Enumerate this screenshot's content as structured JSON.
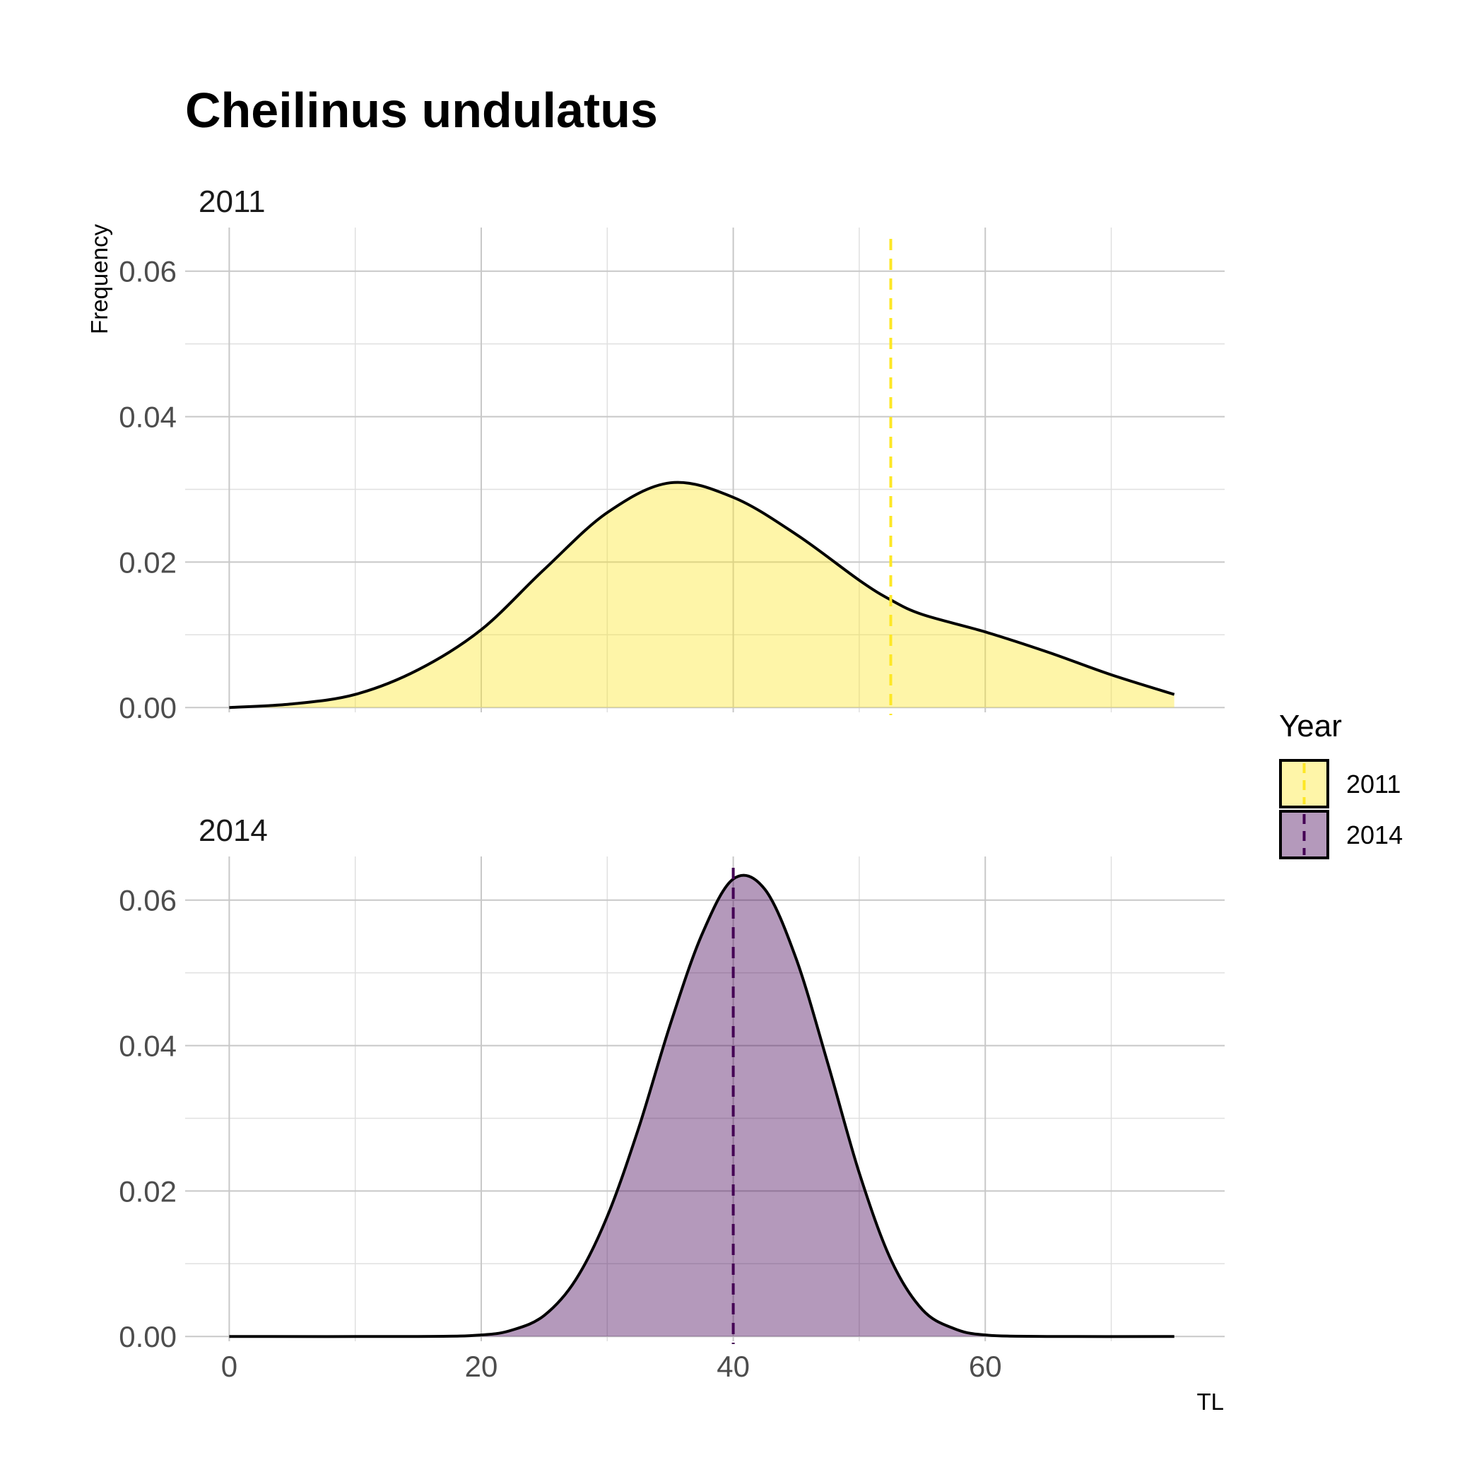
{
  "chart_data": {
    "type": "area",
    "title": "Cheilinus undulatus",
    "xlabel": "TL",
    "ylabel": "Frequency",
    "xlim": [
      -3.5,
      79
    ],
    "ylim": [
      -0.00066,
      0.066
    ],
    "x_ticks": [
      0,
      20,
      40,
      60
    ],
    "x_tick_labels": [
      "0",
      "20",
      "40",
      "60"
    ],
    "y_ticks": [
      0.0,
      0.02,
      0.04,
      0.06
    ],
    "y_tick_labels": [
      "0.00",
      "0.02",
      "0.04",
      "0.06"
    ],
    "grid": true,
    "legend": {
      "title": "Year",
      "placement": "right",
      "entries": [
        "2011",
        "2014"
      ]
    },
    "panels": [
      {
        "strip": "2011",
        "fill": "#FDE725",
        "line": "#FDE725",
        "reference_x": 52.5,
        "x": [
          0,
          5,
          10,
          15,
          20,
          25,
          30,
          35,
          40,
          45,
          50,
          52.5,
          55,
          60,
          65,
          70,
          75
        ],
        "y": [
          0.0,
          0.0005,
          0.0018,
          0.0052,
          0.0107,
          0.019,
          0.0268,
          0.0309,
          0.0289,
          0.0238,
          0.0175,
          0.0148,
          0.0128,
          0.0104,
          0.0076,
          0.0045,
          0.0018
        ]
      },
      {
        "strip": "2014",
        "fill": "#440154",
        "line": "#440154",
        "reference_x": 40,
        "x": [
          0,
          15,
          20,
          22.5,
          25,
          27.5,
          30,
          32.5,
          35,
          37.5,
          40,
          42.5,
          45,
          47.5,
          50,
          52.5,
          55,
          57.5,
          60,
          65,
          75
        ],
        "y": [
          0.0,
          0.0,
          0.0002,
          0.0009,
          0.0029,
          0.0078,
          0.0165,
          0.0287,
          0.0429,
          0.0552,
          0.0629,
          0.0615,
          0.0519,
          0.0376,
          0.0225,
          0.0106,
          0.0037,
          0.0011,
          0.0002,
          0.0,
          0.0
        ]
      }
    ]
  }
}
